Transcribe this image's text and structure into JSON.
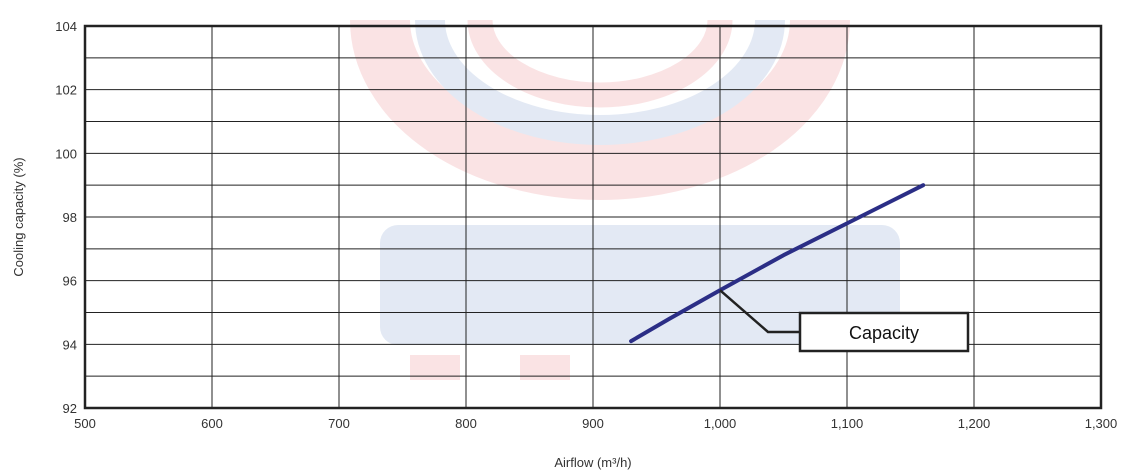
{
  "chart_data": {
    "type": "line",
    "title": "",
    "xlabel": "Airflow (m³/h)",
    "ylabel": "Cooling capacity (%)",
    "xlim": [
      500,
      1300
    ],
    "ylim": [
      92,
      104
    ],
    "x_ticks": [
      500,
      600,
      700,
      800,
      900,
      1000,
      1100,
      1200,
      1300
    ],
    "x_tick_labels": [
      "500",
      "600",
      "700",
      "800",
      "900",
      "1,000",
      "1,100",
      "1,200",
      "1,300"
    ],
    "y_ticks": [
      92,
      94,
      96,
      98,
      100,
      102,
      104
    ],
    "y_tick_labels": [
      "92",
      "94",
      "96",
      "98",
      "100",
      "102",
      "104"
    ],
    "grid": true,
    "series": [
      {
        "name": "Capacity",
        "color": "#2b2e86",
        "x": [
          930,
          960,
          1000,
          1050,
          1100,
          1160
        ],
        "y": [
          94.1,
          94.8,
          95.7,
          96.8,
          97.8,
          99.0
        ]
      }
    ],
    "annotations": [
      {
        "text": "Capacity",
        "points_to": [
          1000,
          95.7
        ]
      }
    ]
  },
  "colors": {
    "frame": "#222222",
    "grid": "#222222",
    "line": "#2b2e86"
  }
}
